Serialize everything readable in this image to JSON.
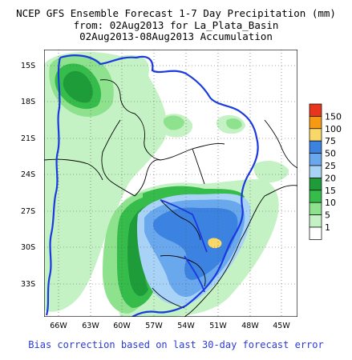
{
  "title": {
    "line1": "NCEP GFS Ensemble Forecast 1-7 Day Precipitation (mm)",
    "line2": "from: 02Aug2013   for La_Plata_Basin",
    "line3": "02Aug2013-08Aug2013 Accumulation"
  },
  "footer": "Bias correction based on last 30-day forecast error",
  "axes": {
    "x_ticks": [
      "66W",
      "63W",
      "60W",
      "57W",
      "54W",
      "51W",
      "48W",
      "45W"
    ],
    "y_ticks": [
      "15S",
      "18S",
      "21S",
      "24S",
      "27S",
      "30S",
      "33S"
    ]
  },
  "legend": {
    "labels": [
      "150",
      "100",
      "75",
      "50",
      "25",
      "20",
      "15",
      "10",
      "5",
      "1"
    ],
    "colors": [
      "#e8361e",
      "#f59a12",
      "#f7d868",
      "#3c82e0",
      "#6aa8ee",
      "#a9d2f7",
      "#1e9c3a",
      "#36bc4a",
      "#8ee28e",
      "#c4f2c4",
      "#ffffff"
    ]
  },
  "map": {
    "region": "La Plata Basin",
    "lon_range": [
      -67.2,
      -43.8
    ],
    "lat_range": [
      -35.8,
      -13.6
    ]
  }
}
